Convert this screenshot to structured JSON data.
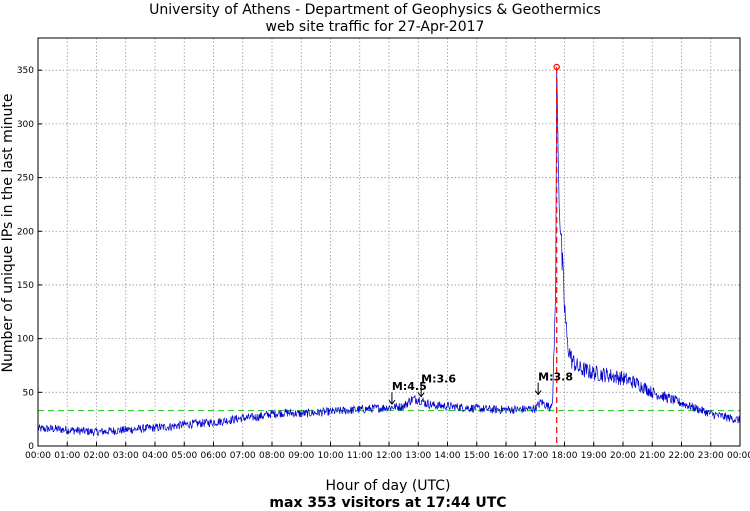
{
  "chart_data": {
    "type": "line",
    "title": "University of Athens - Department of Geophysics & Geothermics",
    "subtitle": "web site traffic for 27-Apr-2017",
    "xlabel": "Hour of day (UTC)",
    "ylabel": "Number of unique IPs in the last minute",
    "footer": "max 353 visitors at 17:44 UTC",
    "xlim": [
      0,
      24
    ],
    "ylim": [
      0,
      380
    ],
    "x_tick_labels": [
      "00:00",
      "01:00",
      "02:00",
      "03:00",
      "04:00",
      "05:00",
      "06:00",
      "07:00",
      "08:00",
      "09:00",
      "10:00",
      "11:00",
      "12:00",
      "13:00",
      "14:00",
      "15:00",
      "16:00",
      "17:00",
      "18:00",
      "19:00",
      "20:00",
      "21:00",
      "22:00",
      "23:00",
      "00:00"
    ],
    "y_ticks": [
      0,
      50,
      100,
      150,
      200,
      250,
      300,
      350
    ],
    "grid": true,
    "average_line": {
      "value": 33,
      "color": "#33cc33"
    },
    "max_marker": {
      "x": 17.733,
      "y": 353,
      "color": "#ff0000"
    },
    "series_color": "#0000cc",
    "series": [
      {
        "x": [
          0,
          0.5,
          1,
          1.5,
          2,
          2.5,
          3,
          3.5,
          4,
          4.5,
          5,
          5.5,
          6,
          6.5,
          7,
          7.5,
          8,
          8.5,
          9,
          9.5,
          10,
          10.5,
          11,
          11.5,
          12,
          12.5,
          12.75,
          13,
          13.25,
          13.5,
          14,
          14.5,
          15,
          15.5,
          16,
          16.5,
          17,
          17.2,
          17.5,
          17.6,
          17.7,
          17.733,
          17.8,
          17.9,
          18,
          18.1,
          18.25,
          18.5,
          18.75,
          19,
          19.5,
          20,
          20.5,
          21,
          21.5,
          22,
          22.5,
          23,
          23.5,
          24
        ],
        "values": [
          16,
          16,
          15,
          14,
          13,
          14,
          15,
          16,
          17,
          18,
          20,
          21,
          22,
          24,
          26,
          27,
          30,
          31,
          30,
          31,
          32,
          33,
          34,
          35,
          36,
          37,
          43,
          44,
          40,
          38,
          37,
          36,
          35,
          34,
          34,
          34,
          35,
          41,
          36,
          45,
          150,
          353,
          250,
          180,
          130,
          95,
          80,
          72,
          70,
          68,
          66,
          63,
          58,
          50,
          45,
          40,
          35,
          30,
          27,
          24
        ]
      }
    ],
    "annotations": [
      {
        "text": "M:4.5",
        "x": 12.1,
        "y": 38
      },
      {
        "text": "M:3.6",
        "x": 13.1,
        "y": 45
      },
      {
        "text": "M:3.8",
        "x": 17.1,
        "y": 47
      }
    ]
  }
}
